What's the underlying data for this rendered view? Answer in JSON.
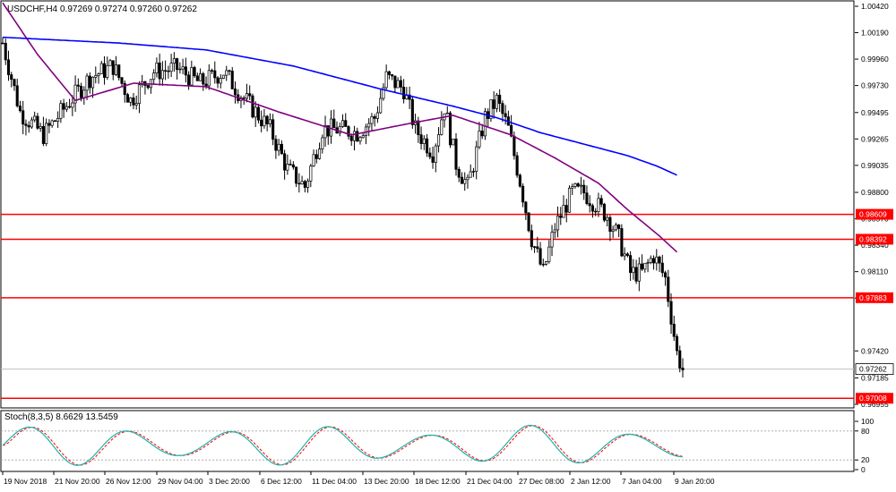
{
  "chart_data": {
    "type": "candlestick",
    "symbol_label": "USDCHF,H4",
    "ohlc_label": "0.97269 0.97274 0.97260 0.97262",
    "price_axis_ticks": [
      "1.00420",
      "1.00190",
      "0.99960",
      "0.99730",
      "0.99495",
      "0.99265",
      "0.99035",
      "0.98800",
      "0.98570",
      "0.98340",
      "0.98110",
      "0.97880",
      "0.97420",
      "0.97185",
      "0.96955"
    ],
    "ylim": [
      0.96955,
      1.0042
    ],
    "time_labels": [
      "19 Nov 2018",
      "21 Nov 20:00",
      "26 Nov 12:00",
      "29 Nov 04:00",
      "3 Dec 20:00",
      "6 Dec 12:00",
      "11 Dec 04:00",
      "13 Dec 20:00",
      "18 Dec 12:00",
      "21 Dec 04:00",
      "27 Dec 08:00",
      "2 Jan 12:00",
      "7 Jan 04:00",
      "9 Jan 20:00"
    ],
    "horizontal_levels": [
      {
        "value": 0.98609,
        "label": "0.98609"
      },
      {
        "value": 0.98392,
        "label": "0.98392"
      },
      {
        "value": 0.97883,
        "label": "0.97883"
      },
      {
        "value": 0.97008,
        "label": "0.97008"
      }
    ],
    "current_price": {
      "value": 0.97262,
      "label": "0.97262"
    },
    "moving_averages": [
      {
        "color": "#800080",
        "key_points": [
          [
            0,
            1.0045
          ],
          [
            12,
            1.0
          ],
          [
            25,
            0.996
          ],
          [
            45,
            0.9975
          ],
          [
            70,
            0.9972
          ],
          [
            95,
            0.995
          ],
          [
            120,
            0.993
          ],
          [
            140,
            0.994
          ],
          [
            155,
            0.9947
          ],
          [
            175,
            0.993
          ],
          [
            190,
            0.991
          ],
          [
            205,
            0.9888
          ],
          [
            215,
            0.9865
          ],
          [
            226,
            0.9842
          ],
          [
            232,
            0.9828
          ]
        ]
      },
      {
        "color": "#0000ff",
        "key_points": [
          [
            0,
            1.0015
          ],
          [
            40,
            1.001
          ],
          [
            70,
            1.0004
          ],
          [
            100,
            0.999
          ],
          [
            130,
            0.997
          ],
          [
            155,
            0.9955
          ],
          [
            170,
            0.9945
          ],
          [
            185,
            0.9932
          ],
          [
            200,
            0.9922
          ],
          [
            215,
            0.9912
          ],
          [
            225,
            0.9903
          ],
          [
            232,
            0.9895
          ]
        ]
      }
    ],
    "price_path_key_points": [
      [
        0,
        1.001
      ],
      [
        6,
        0.995
      ],
      [
        14,
        0.993
      ],
      [
        24,
        0.9962
      ],
      [
        30,
        0.998
      ],
      [
        38,
        0.999
      ],
      [
        44,
        0.996
      ],
      [
        52,
        0.9985
      ],
      [
        60,
        0.9988
      ],
      [
        68,
        0.9975
      ],
      [
        76,
        0.9985
      ],
      [
        82,
        0.9965
      ],
      [
        92,
        0.9935
      ],
      [
        98,
        0.99
      ],
      [
        104,
        0.9885
      ],
      [
        110,
        0.9935
      ],
      [
        116,
        0.9935
      ],
      [
        122,
        0.9932
      ],
      [
        128,
        0.9945
      ],
      [
        132,
        0.998
      ],
      [
        138,
        0.997
      ],
      [
        142,
        0.9935
      ],
      [
        148,
        0.9915
      ],
      [
        152,
        0.9955
      ],
      [
        156,
        0.9905
      ],
      [
        160,
        0.9885
      ],
      [
        166,
        0.9945
      ],
      [
        170,
        0.996
      ],
      [
        174,
        0.9935
      ],
      [
        178,
        0.989
      ],
      [
        182,
        0.984
      ],
      [
        186,
        0.981
      ],
      [
        190,
        0.985
      ],
      [
        196,
        0.988
      ],
      [
        200,
        0.988
      ],
      [
        204,
        0.987
      ],
      [
        208,
        0.986
      ],
      [
        212,
        0.984
      ],
      [
        216,
        0.981
      ],
      [
        220,
        0.981
      ],
      [
        224,
        0.9825
      ],
      [
        228,
        0.9805
      ],
      [
        232,
        0.974
      ],
      [
        234,
        0.9726
      ]
    ],
    "stochastic": {
      "label": "Stoch(8,3,5) 8.6629 13.5459",
      "ylim": [
        0,
        100
      ],
      "levels": [
        20,
        80
      ],
      "tick_labels": [
        "100",
        "80",
        "20",
        "0"
      ],
      "main_color": "#20b2aa",
      "signal_color": "#ff0000"
    }
  }
}
